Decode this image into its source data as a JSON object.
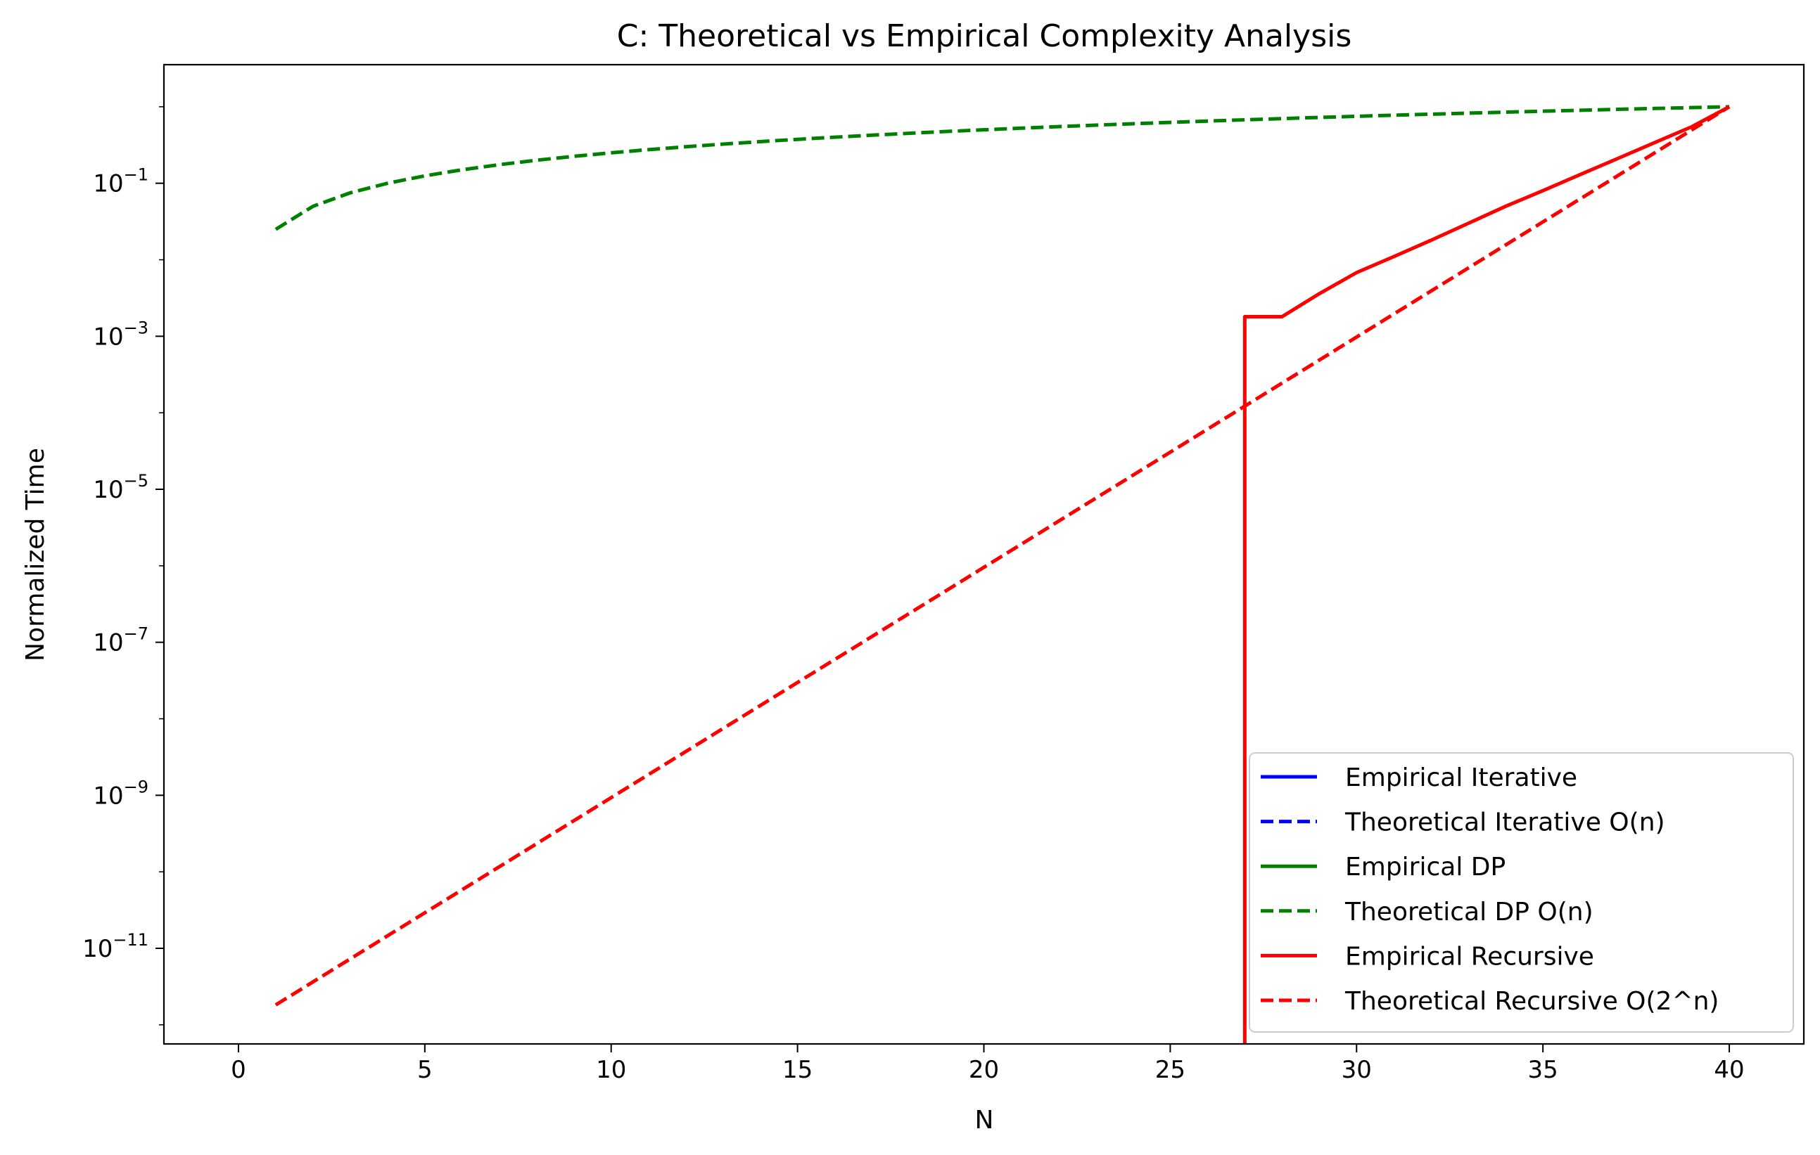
{
  "chart_data": {
    "type": "line",
    "title": "C: Theoretical vs Empirical Complexity Analysis",
    "xlabel": "N",
    "ylabel": "Normalized Time",
    "xlim": [
      -2,
      42
    ],
    "ylim_log10": [
      -12.25,
      0.55
    ],
    "y_scale": "log",
    "x_ticks": [
      0,
      5,
      10,
      15,
      20,
      25,
      30,
      35,
      40
    ],
    "x_tick_labels": [
      "0",
      "5",
      "10",
      "15",
      "20",
      "25",
      "30",
      "35",
      "40"
    ],
    "y_ticks_exponent": [
      -1,
      -3,
      -5,
      -7,
      -9,
      -11
    ],
    "y_tick_base": "10",
    "y_tick_exponent_labels": [
      "−1",
      "−3",
      "−5",
      "−7",
      "−9",
      "−11"
    ],
    "grid": false,
    "legend_position": "lower-right",
    "series": [
      {
        "name": "Empirical Iterative",
        "color": "#0000ff",
        "style": "solid",
        "x": [],
        "y": []
      },
      {
        "name": "Theoretical Iterative O(n)",
        "color": "#0000ff",
        "style": "dashed",
        "x": [],
        "y": []
      },
      {
        "name": "Empirical DP",
        "color": "#008000",
        "style": "solid",
        "x": [],
        "y": []
      },
      {
        "name": "Theoretical DP O(n)",
        "color": "#008000",
        "style": "dashed",
        "x": [
          1,
          2,
          3,
          4,
          5,
          6,
          7,
          8,
          9,
          10,
          11,
          12,
          13,
          14,
          15,
          16,
          17,
          18,
          19,
          20,
          21,
          22,
          23,
          24,
          25,
          26,
          27,
          28,
          29,
          30,
          31,
          32,
          33,
          34,
          35,
          36,
          37,
          38,
          39,
          40
        ],
        "y": [
          0.025,
          0.05,
          0.075,
          0.1,
          0.125,
          0.15,
          0.175,
          0.2,
          0.225,
          0.25,
          0.275,
          0.3,
          0.325,
          0.35,
          0.375,
          0.4,
          0.425,
          0.45,
          0.475,
          0.5,
          0.525,
          0.55,
          0.575,
          0.6,
          0.625,
          0.65,
          0.675,
          0.7,
          0.725,
          0.75,
          0.775,
          0.8,
          0.825,
          0.85,
          0.875,
          0.9,
          0.925,
          0.95,
          0.975,
          1.0
        ]
      },
      {
        "name": "Empirical Recursive",
        "color": "#ff0000",
        "style": "solid",
        "x": [
          27,
          27,
          28,
          29,
          30,
          31,
          32,
          33,
          34,
          35,
          36,
          37,
          38,
          39,
          40
        ],
        "y": [
          1e-13,
          0.0018,
          0.0018,
          0.0036,
          0.0068,
          0.011,
          0.018,
          0.03,
          0.05,
          0.08,
          0.13,
          0.21,
          0.34,
          0.55,
          1.0
        ]
      },
      {
        "name": "Theoretical Recursive O(2^n)",
        "color": "#ff0000",
        "style": "dashed",
        "x": [
          1,
          40
        ],
        "y": [
          1.82e-12,
          1.0
        ]
      }
    ]
  }
}
